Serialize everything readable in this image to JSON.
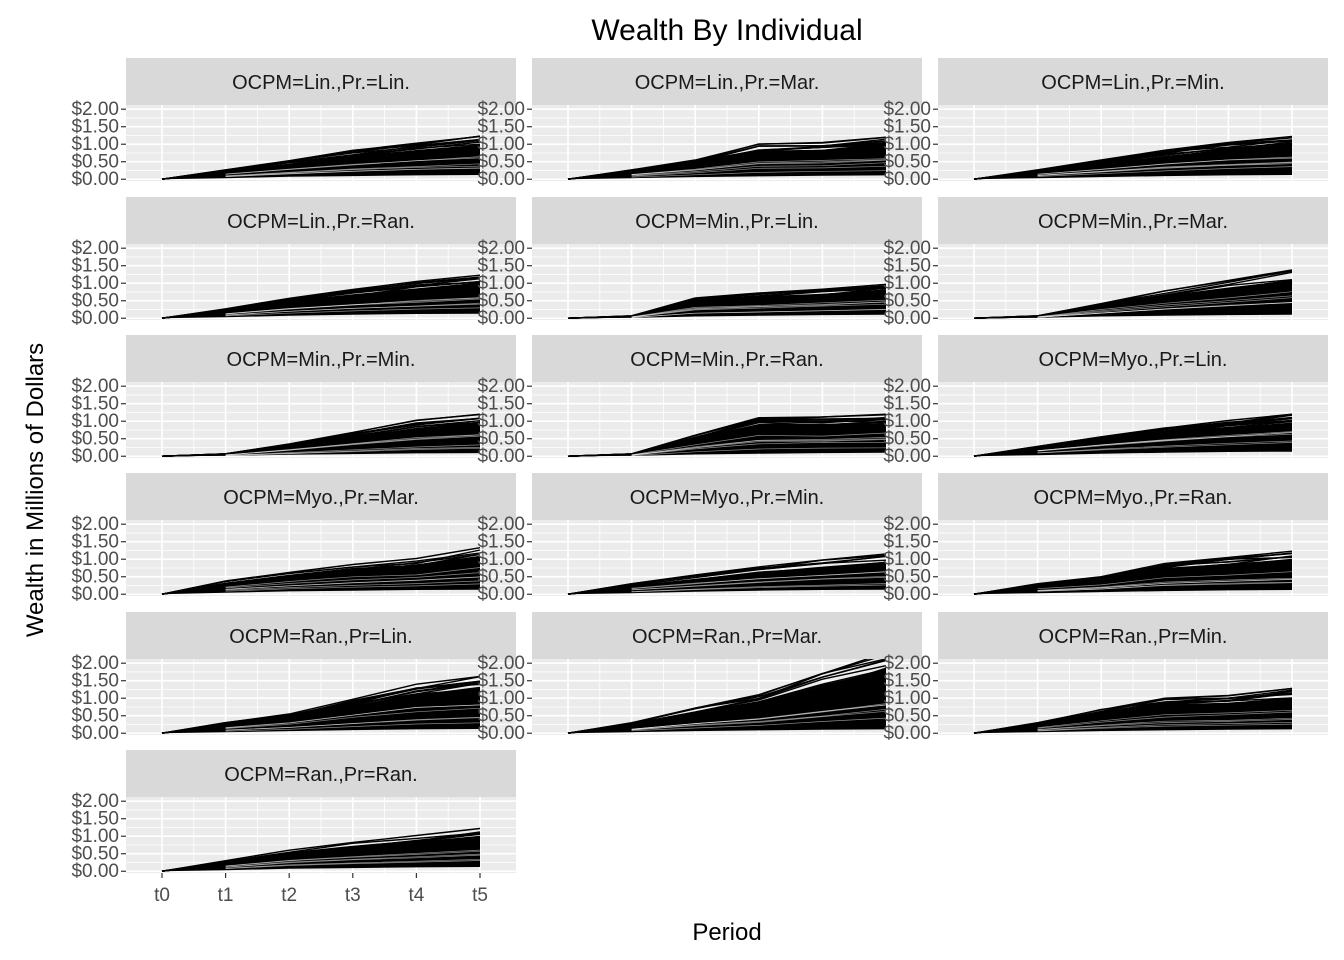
{
  "chart_data": {
    "type": "line",
    "title": "Wealth By Individual",
    "xlabel": "Period",
    "ylabel": "Wealth in Millions of Dollars",
    "x": [
      "t0",
      "t1",
      "t2",
      "t3",
      "t4",
      "t5"
    ],
    "y_ticks": [
      "$0.00",
      "$0.50",
      "$1.00",
      "$1.50",
      "$2.00"
    ],
    "y_tick_values": [
      0,
      0.5,
      1.0,
      1.5,
      2.0
    ],
    "ylim": [
      -0.05,
      2.12
    ],
    "grid": true,
    "line_color": "#000000",
    "panel_background": "#ebebeb",
    "strip_background": "#d9d9d9",
    "panels": [
      {
        "label": "OCPM=Lin.,Pr.=Lin.",
        "max": [
          0,
          0.27,
          0.53,
          0.82,
          1.03,
          1.22
        ],
        "min": [
          0,
          0.03,
          0.07,
          0.09,
          0.11,
          0.12
        ]
      },
      {
        "label": "OCPM=Lin.,Pr.=Mar.",
        "max": [
          0,
          0.27,
          0.55,
          1.0,
          1.05,
          1.2
        ],
        "min": [
          0,
          0.03,
          0.06,
          0.08,
          0.1,
          0.11
        ]
      },
      {
        "label": "OCPM=Lin.,Pr.=Min.",
        "max": [
          0,
          0.27,
          0.55,
          0.83,
          1.05,
          1.22
        ],
        "min": [
          0,
          0.03,
          0.06,
          0.09,
          0.11,
          0.12
        ]
      },
      {
        "label": "OCPM=Lin.,Pr.=Ran.",
        "max": [
          0,
          0.27,
          0.57,
          0.82,
          1.05,
          1.23
        ],
        "min": [
          0,
          0.03,
          0.07,
          0.1,
          0.12,
          0.13
        ]
      },
      {
        "label": "OCPM=Min.,Pr.=Lin.",
        "max": [
          0,
          0.07,
          0.58,
          0.72,
          0.83,
          0.97
        ],
        "min": [
          0,
          0.01,
          0.05,
          0.07,
          0.09,
          0.1
        ]
      },
      {
        "label": "OCPM=Min.,Pr.=Mar.",
        "max": [
          0,
          0.07,
          0.42,
          0.78,
          1.08,
          1.38
        ],
        "min": [
          0,
          0.01,
          0.05,
          0.07,
          0.09,
          0.1
        ]
      },
      {
        "label": "OCPM=Min.,Pr.=Min.",
        "max": [
          0,
          0.07,
          0.35,
          0.68,
          1.02,
          1.2
        ],
        "min": [
          0,
          0.01,
          0.04,
          0.06,
          0.08,
          0.09
        ]
      },
      {
        "label": "OCPM=Min.,Pr.=Ran.",
        "max": [
          0,
          0.07,
          0.6,
          1.1,
          1.12,
          1.2
        ],
        "min": [
          0,
          0.01,
          0.05,
          0.07,
          0.09,
          0.1
        ]
      },
      {
        "label": "OCPM=Myo.,Pr.=Lin.",
        "max": [
          0,
          0.28,
          0.55,
          0.8,
          1.02,
          1.2
        ],
        "min": [
          0,
          0.03,
          0.07,
          0.1,
          0.12,
          0.13
        ]
      },
      {
        "label": "OCPM=Myo.,Pr.=Mar.",
        "max": [
          0,
          0.38,
          0.62,
          0.85,
          1.02,
          1.33
        ],
        "min": [
          0,
          0.04,
          0.08,
          0.1,
          0.12,
          0.13
        ]
      },
      {
        "label": "OCPM=Myo.,Pr.=Min.",
        "max": [
          0,
          0.3,
          0.55,
          0.78,
          0.98,
          1.15
        ],
        "min": [
          0,
          0.03,
          0.07,
          0.1,
          0.12,
          0.13
        ]
      },
      {
        "label": "OCPM=Myo.,Pr.=Ran.",
        "max": [
          0,
          0.3,
          0.5,
          0.88,
          1.05,
          1.23
        ],
        "min": [
          0,
          0.03,
          0.06,
          0.09,
          0.11,
          0.12
        ]
      },
      {
        "label": "OCPM=Ran.,Pr=Lin.",
        "max": [
          0,
          0.3,
          0.55,
          0.97,
          1.4,
          1.62
        ],
        "min": [
          0,
          0.03,
          0.06,
          0.09,
          0.11,
          0.12
        ]
      },
      {
        "label": "OCPM=Ran.,Pr=Mar.",
        "max": [
          0,
          0.3,
          0.72,
          1.1,
          1.7,
          2.3
        ],
        "min": [
          0,
          0.03,
          0.06,
          0.08,
          0.1,
          0.11
        ]
      },
      {
        "label": "OCPM=Ran.,Pr=Min.",
        "max": [
          0,
          0.3,
          0.67,
          1.0,
          1.08,
          1.28
        ],
        "min": [
          0,
          0.03,
          0.06,
          0.08,
          0.1,
          0.11
        ]
      },
      {
        "label": "OCPM=Ran.,Pr=Ran.",
        "max": [
          0,
          0.3,
          0.6,
          0.82,
          1.02,
          1.22
        ],
        "min": [
          0,
          0.03,
          0.07,
          0.09,
          0.11,
          0.12
        ]
      }
    ]
  }
}
